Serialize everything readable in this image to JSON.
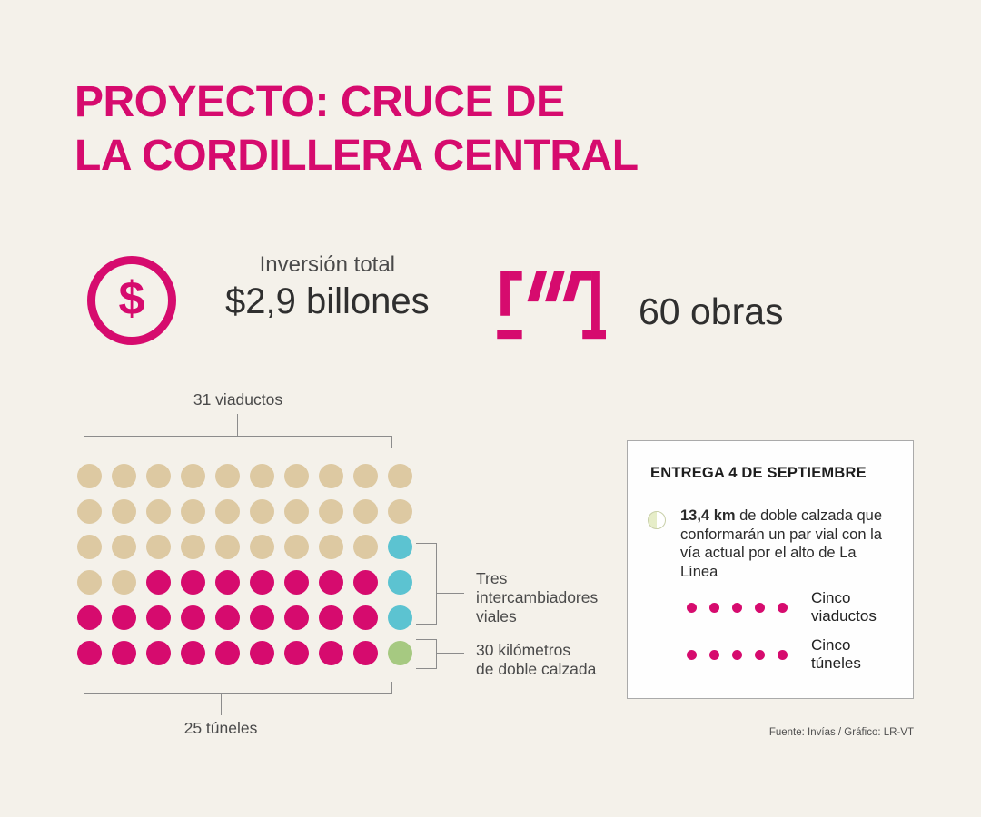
{
  "colors": {
    "background": "#f4f1ea",
    "magenta": "#d60b6e",
    "tan": "#ddc9a2",
    "teal": "#5cc3d1",
    "green": "#a6c981",
    "pale_green": "#e6edc8",
    "bracket": "#8c8c8c",
    "text_dark": "#333333",
    "text_mid": "#4a4a4a",
    "panel_bg": "#fefefe",
    "panel_border": "#aaaaaa"
  },
  "title": "PROYECTO: CRUCE DE\nLA CORDILLERA CENTRAL",
  "stats": {
    "dollar_symbol": "$",
    "investment_label": "Inversión total",
    "investment_value": "$2,9 billones",
    "works_value": "60 obras"
  },
  "chart_data": {
    "type": "pictogram",
    "title": "60 obras",
    "total": 60,
    "grid_rows": 6,
    "grid_columns": 10,
    "grid": [
      [
        "tan",
        "tan",
        "tan",
        "tan",
        "tan",
        "tan",
        "tan",
        "tan",
        "tan",
        "tan"
      ],
      [
        "tan",
        "tan",
        "tan",
        "tan",
        "tan",
        "tan",
        "tan",
        "tan",
        "tan",
        "tan"
      ],
      [
        "tan",
        "tan",
        "tan",
        "tan",
        "tan",
        "tan",
        "tan",
        "tan",
        "tan",
        "teal"
      ],
      [
        "tan",
        "tan",
        "magenta",
        "magenta",
        "magenta",
        "magenta",
        "magenta",
        "magenta",
        "magenta",
        "teal"
      ],
      [
        "magenta",
        "magenta",
        "magenta",
        "magenta",
        "magenta",
        "magenta",
        "magenta",
        "magenta",
        "magenta",
        "teal"
      ],
      [
        "magenta",
        "magenta",
        "magenta",
        "magenta",
        "magenta",
        "magenta",
        "magenta",
        "magenta",
        "magenta",
        "green"
      ]
    ],
    "legend": [
      {
        "label": "31 viaductos",
        "count": 31,
        "color_key": "tan"
      },
      {
        "label": "25 túneles",
        "count": 25,
        "color_key": "magenta"
      },
      {
        "label": "Tres intercambiadores viales",
        "count": 3,
        "color_key": "teal"
      },
      {
        "label": "30 kilómetros de doble calzada",
        "count": 1,
        "color_key": "green"
      }
    ]
  },
  "grid_labels": {
    "viaductos": "31 viaductos",
    "tuneles": "25 túneles",
    "intercambiadores": "Tres\nintercambiadores\nviales",
    "doble_calzada": "30 kilómetros\nde doble calzada"
  },
  "panel": {
    "title": "ENTREGA 4 DE SEPTIEMBRE",
    "highlight": "13,4 km",
    "paragraph": " de doble calzada que conformarán un par vial con la vía actual por el alto de La Línea",
    "items": [
      {
        "label": "Cinco\nviaductos",
        "dots": 5
      },
      {
        "label": "Cinco\ntúneles",
        "dots": 5
      }
    ]
  },
  "footer": "Fuente: Invías / Gráfico: LR-VT"
}
